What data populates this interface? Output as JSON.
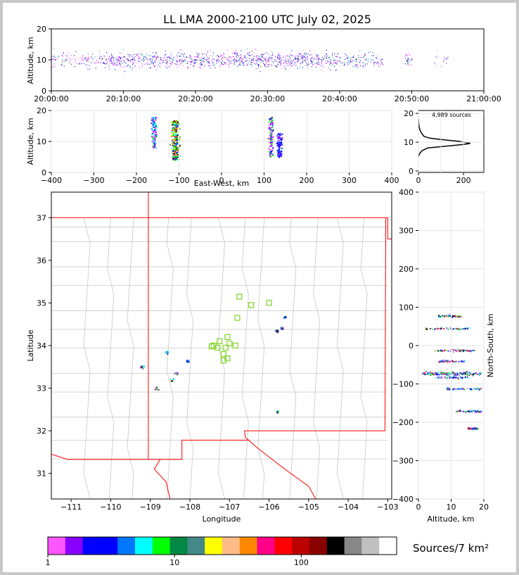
{
  "title": "LL LMA 2000-2100 UTC July 02, 2025",
  "time_height": {
    "ylabel": "Altitude, km",
    "y_ticks": [
      "0",
      "10",
      "20"
    ],
    "x_ticks": [
      "20:00:00",
      "20:10:00",
      "20:20:00",
      "20:30:00",
      "20:40:00",
      "20:50:00",
      "21:00:00"
    ],
    "xlim_min": [
      0,
      60
    ],
    "ylim": [
      0,
      20
    ]
  },
  "ew_height": {
    "ylabel": "Altitude, km",
    "xlabel": "East-West, km",
    "x_ticks": [
      "−400",
      "−300",
      "−200",
      "−100",
      "0",
      "100",
      "200",
      "300",
      "400"
    ],
    "y_ticks": [
      "0",
      "10",
      "20"
    ],
    "xlim": [
      -400,
      400
    ],
    "ylim": [
      0,
      20
    ]
  },
  "histogram": {
    "source_count": "4,989 sources",
    "x_ticks": [
      "0",
      "200"
    ],
    "y_ticks": [
      "0",
      "10",
      "20"
    ],
    "xlim": [
      0,
      290
    ],
    "ylim": [
      -0.5,
      21
    ]
  },
  "map": {
    "xlabel": "Longitude",
    "ylabel": "Latitude",
    "lon_ticks": [
      "−111",
      "−110",
      "−109",
      "−108",
      "−107",
      "−106",
      "−105",
      "−104",
      "−103"
    ],
    "lat_ticks": [
      "31",
      "32",
      "33",
      "34",
      "35",
      "36",
      "37"
    ],
    "xlim": [
      -111.5,
      -102.9
    ],
    "ylim": [
      30.4,
      37.6
    ]
  },
  "ns_height": {
    "xlabel": "Altitude, km",
    "ylabel": "North-South, km",
    "x_ticks": [
      "0",
      "10",
      "20"
    ],
    "y_ticks": [
      "−400",
      "−300",
      "−200",
      "−100",
      "0",
      "100",
      "200",
      "300",
      "400"
    ],
    "xlim": [
      0,
      20
    ],
    "ylim": [
      -400,
      400
    ]
  },
  "colorbar": {
    "title": "Sources/7 km²",
    "tick_labels": [
      "1",
      "10",
      "100"
    ],
    "colors": [
      "#ff55ff",
      "#8800ff",
      "#0000ff",
      "#0000ff",
      "#0077ff",
      "#00ffff",
      "#00ff00",
      "#008844",
      "#448888",
      "#ffff00",
      "#ffbb88",
      "#ff8800",
      "#ff0088",
      "#ff0000",
      "#bb0000",
      "#880000",
      "#000000",
      "#888888",
      "#c0c0c0",
      "#ffffff"
    ]
  },
  "chart_data": [
    {
      "type": "scatter",
      "panel": "time-height",
      "xlabel": "",
      "ylabel": "Altitude, km",
      "x_range": [
        "20:00:00",
        "21:00:00"
      ],
      "ylim": [
        0,
        20
      ],
      "activity_windows_utc": [
        [
          "20:00:00",
          "20:46:00"
        ],
        [
          "20:49:00",
          "20:50:00"
        ],
        [
          "20:53:00",
          "20:55:00"
        ]
      ],
      "typical_altitude_km": [
        5,
        16
      ]
    },
    {
      "type": "scatter",
      "panel": "east-west-height",
      "xlabel": "East-West, km",
      "ylabel": "Altitude, km",
      "xlim": [
        -400,
        400
      ],
      "ylim": [
        0,
        20
      ],
      "clusters": [
        {
          "x_km": -160,
          "alt_km": [
            8,
            18
          ]
        },
        {
          "x_km": -110,
          "alt_km": [
            4,
            17
          ]
        },
        {
          "x_km": 115,
          "alt_km": [
            5,
            18
          ]
        },
        {
          "x_km": 135,
          "alt_km": [
            5,
            13
          ]
        }
      ]
    },
    {
      "type": "line",
      "panel": "altitude-histogram",
      "annotation": "4,989 sources",
      "xlim": [
        0,
        290
      ],
      "ylim": [
        0,
        21
      ],
      "points": [
        [
          0,
          5
        ],
        [
          5,
          6
        ],
        [
          15,
          7
        ],
        [
          40,
          8
        ],
        [
          120,
          8.6
        ],
        [
          200,
          9.2
        ],
        [
          230,
          9.6
        ],
        [
          180,
          10.3
        ],
        [
          100,
          10.9
        ],
        [
          50,
          11.4
        ],
        [
          25,
          12
        ],
        [
          15,
          13
        ],
        [
          8,
          14
        ],
        [
          4,
          15
        ],
        [
          2,
          16
        ],
        [
          1,
          17
        ],
        [
          0,
          18
        ]
      ]
    },
    {
      "type": "scatter",
      "panel": "plan-view-map",
      "xlabel": "Longitude",
      "ylabel": "Latitude",
      "xlim": [
        -111.5,
        -102.9
      ],
      "ylim": [
        30.4,
        37.6
      ],
      "sensor_stations": [
        [
          -107.25,
          34.1
        ],
        [
          -107.1,
          33.95
        ],
        [
          -107.05,
          34.2
        ],
        [
          -106.8,
          34.65
        ],
        [
          -106.45,
          34.95
        ],
        [
          -106.75,
          35.15
        ],
        [
          -106.0,
          35.0
        ],
        [
          -107.3,
          33.95
        ],
        [
          -107.4,
          34.0
        ],
        [
          -106.85,
          34.0
        ],
        [
          -107.15,
          33.8
        ],
        [
          -107.05,
          33.7
        ],
        [
          -107.15,
          33.65
        ],
        [
          -107.45,
          33.98
        ],
        [
          -107.0,
          34.05
        ]
      ],
      "source_clusters": [
        {
          "lon": -108.6,
          "lat": 33.85
        },
        {
          "lon": -108.35,
          "lat": 33.35
        },
        {
          "lon": -108.45,
          "lat": 33.2
        },
        {
          "lon": -108.85,
          "lat": 33.0
        },
        {
          "lon": -109.2,
          "lat": 33.5
        },
        {
          "lon": -108.05,
          "lat": 33.65
        },
        {
          "lon": -105.7,
          "lat": 34.42
        },
        {
          "lon": -105.6,
          "lat": 34.68
        },
        {
          "lon": -105.8,
          "lat": 34.35
        },
        {
          "lon": -105.8,
          "lat": 32.45
        }
      ]
    },
    {
      "type": "scatter",
      "panel": "north-south-height",
      "xlabel": "Altitude, km",
      "ylabel": "North-South, km",
      "xlim": [
        0,
        20
      ],
      "ylim": [
        -400,
        400
      ],
      "clusters": [
        {
          "ns_km": 78,
          "alt_km": [
            6,
            13
          ]
        },
        {
          "ns_km": 45,
          "alt_km": [
            2,
            16
          ]
        },
        {
          "ns_km": -12,
          "alt_km": [
            5,
            17
          ]
        },
        {
          "ns_km": -40,
          "alt_km": [
            6,
            14
          ]
        },
        {
          "ns_km": -72,
          "alt_km": [
            1,
            19
          ]
        },
        {
          "ns_km": -82,
          "alt_km": [
            5,
            15
          ]
        },
        {
          "ns_km": -112,
          "alt_km": [
            8,
            19
          ]
        },
        {
          "ns_km": -170,
          "alt_km": [
            11,
            19
          ]
        },
        {
          "ns_km": -215,
          "alt_km": [
            15,
            18
          ]
        }
      ]
    }
  ]
}
